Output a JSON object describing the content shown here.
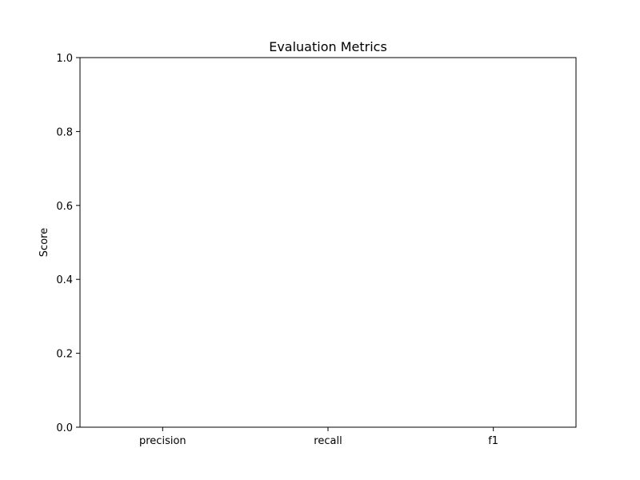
{
  "chart_data": {
    "type": "bar",
    "title": "Evaluation Metrics",
    "xlabel": "",
    "ylabel": "Score",
    "categories": [
      "precision",
      "recall",
      "f1"
    ],
    "values": [
      0,
      0,
      0
    ],
    "ylim": [
      0,
      1
    ],
    "yticks": [
      0,
      0.2,
      0.4,
      0.6,
      0.8,
      1
    ],
    "ytick_labels": [
      "0.0",
      "0.2",
      "0.4",
      "0.6",
      "0.8",
      "1.0"
    ],
    "grid": false,
    "legend": "none",
    "colors": {
      "axis": "#000000",
      "bar": "#1f77b4",
      "background": "#ffffff"
    }
  }
}
